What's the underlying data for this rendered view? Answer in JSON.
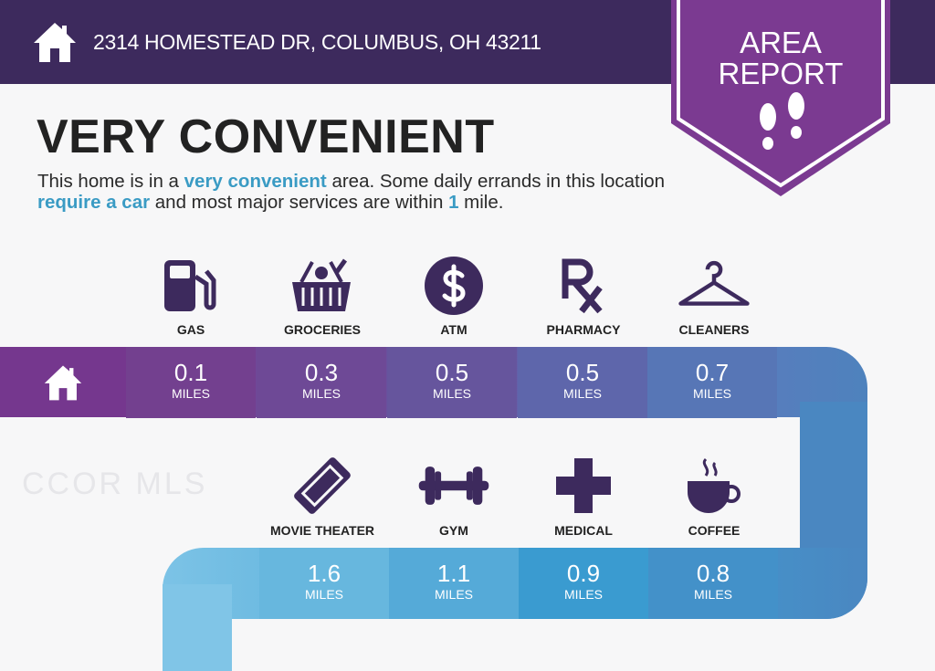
{
  "header": {
    "address": "2314 HOMESTEAD DR, COLUMBUS, OH 43211",
    "badge_line1": "AREA",
    "badge_line2": "REPORT"
  },
  "rating": {
    "title": "VERY CONVENIENT",
    "desc": {
      "p1": "This home is in a ",
      "h1": "very convenient",
      "p2": " area. Some daily errands in this location ",
      "h2": "require a car",
      "p3": " and most major services are within ",
      "h3": "1",
      "p4": " mile."
    }
  },
  "unit": "MILES",
  "watermark": "CCOR MLS",
  "top_row": [
    {
      "label": "GAS",
      "value": "0.1",
      "icon": "gas-pump-icon"
    },
    {
      "label": "GROCERIES",
      "value": "0.3",
      "icon": "grocery-basket-icon"
    },
    {
      "label": "ATM",
      "value": "0.5",
      "icon": "dollar-icon"
    },
    {
      "label": "PHARMACY",
      "value": "0.5",
      "icon": "rx-icon"
    },
    {
      "label": "CLEANERS",
      "value": "0.7",
      "icon": "hanger-icon"
    }
  ],
  "bottom_row": [
    {
      "label": "MOVIE THEATER",
      "value": "1.6",
      "icon": "ticket-icon"
    },
    {
      "label": "GYM",
      "value": "1.1",
      "icon": "dumbbell-icon"
    },
    {
      "label": "MEDICAL",
      "value": "0.9",
      "icon": "medical-cross-icon"
    },
    {
      "label": "COFFEE",
      "value": "0.8",
      "icon": "coffee-cup-icon"
    }
  ],
  "colors": {
    "header": "#3d2a5d",
    "badge": "#7b3a91",
    "icon": "#3d2a5d",
    "accent": "#3a9bc4"
  }
}
